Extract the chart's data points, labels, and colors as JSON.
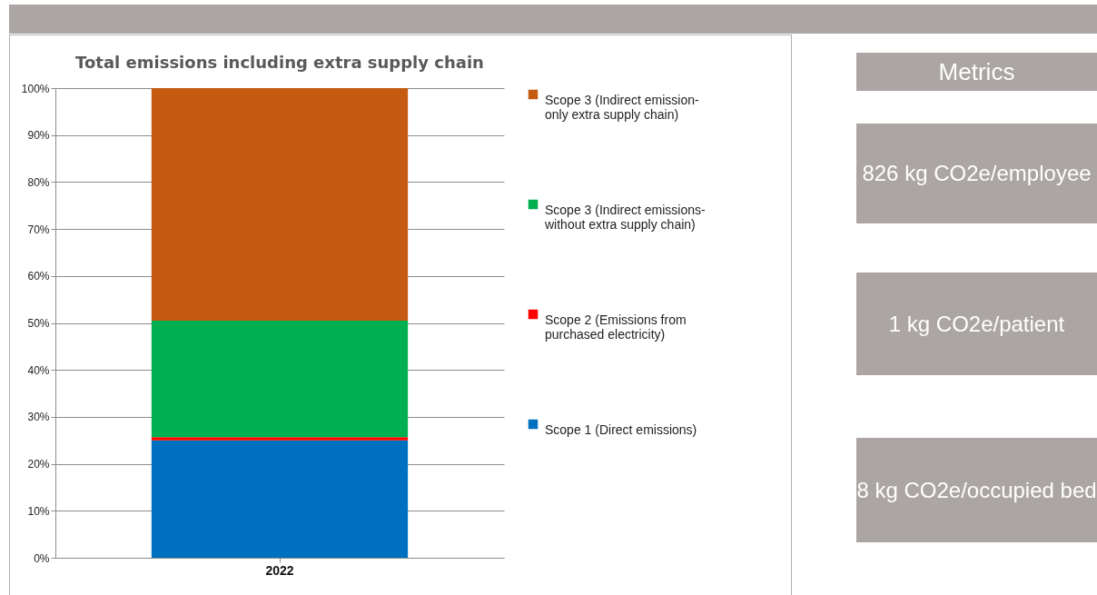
{
  "chart_data": [
    {
      "type": "bar",
      "title": "Total emissions including extra supply chain",
      "categories": [
        "2022"
      ],
      "stacked": true,
      "series": [
        {
          "name": "Scope 1 (Direct emissions)",
          "color": "#0070c0",
          "values": [
            25.0
          ]
        },
        {
          "name": "Scope 2 (Emissions from purchased electricity)",
          "color": "#ff0000",
          "values": [
            0.7
          ]
        },
        {
          "name": "Scope 3 (Indirect emissions- without extra supply chain)",
          "color": "#00b050",
          "values": [
            24.8
          ]
        },
        {
          "name": "Scope 3 (Indirect emission- only extra supply chain)",
          "color": "#c55a11",
          "values": [
            49.5
          ]
        }
      ],
      "ylim": [
        0,
        100
      ],
      "yticks": [
        {
          "value": 0,
          "label": "0%"
        },
        {
          "value": 10,
          "label": "10%"
        },
        {
          "value": 20,
          "label": "20%"
        },
        {
          "value": 30,
          "label": "30%"
        },
        {
          "value": 40,
          "label": "40%"
        },
        {
          "value": 50,
          "label": "50%"
        },
        {
          "value": 60,
          "label": "60%"
        },
        {
          "value": 70,
          "label": "70%"
        },
        {
          "value": 80,
          "label": "80%"
        },
        {
          "value": 90,
          "label": "90%"
        },
        {
          "value": 100,
          "label": "100%"
        }
      ],
      "grid": "y",
      "legend": "right"
    },
    {
      "type": "other",
      "title": "Metrics",
      "annotations": [
        "826 kg CO2e/employee",
        "1 kg CO2e/patient",
        "8 kg CO2e/occupied bed"
      ]
    }
  ]
}
